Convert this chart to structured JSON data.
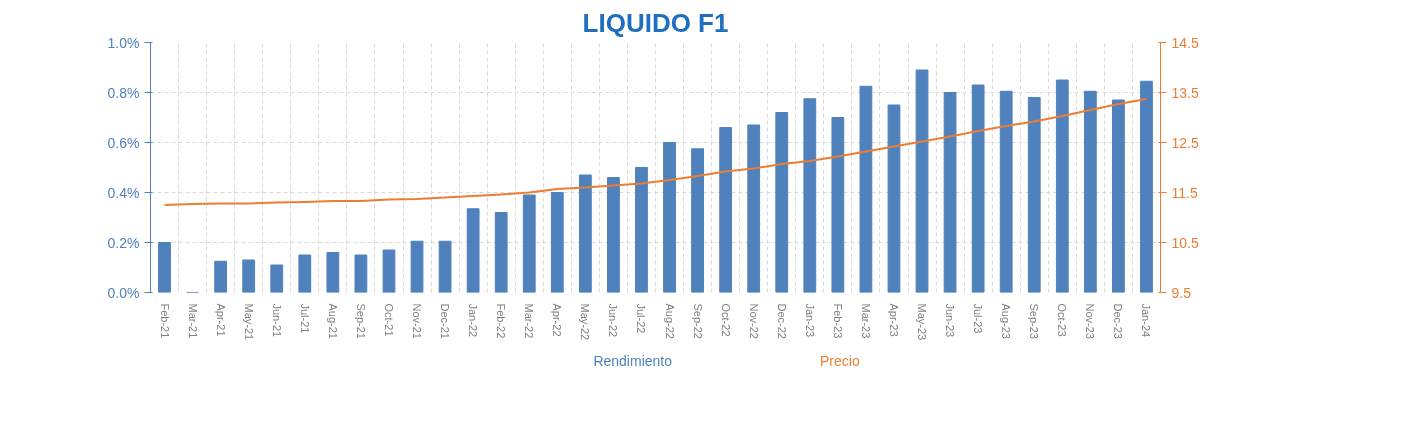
{
  "chart_data": {
    "type": "bar",
    "title": "LIQUIDO F1",
    "categories": [
      "Feb-21",
      "Mar-21",
      "Apr-21",
      "May-21",
      "Jun-21",
      "Jul-21",
      "Aug-21",
      "Sep-21",
      "Oct-21",
      "Nov-21",
      "Dec-21",
      "Jan-22",
      "Feb-22",
      "Mar-22",
      "Apr-22",
      "May-22",
      "Jun-22",
      "Jul-22",
      "Aug-22",
      "Sep-22",
      "Oct-22",
      "Nov-22",
      "Dec-22",
      "Jan-23",
      "Feb-23",
      "Mar-23",
      "Apr-23",
      "May-23",
      "Jun-23",
      "Jul-23",
      "Aug-23",
      "Sep-23",
      "Oct-23",
      "Nov-23",
      "Dec-23",
      "Jan-24"
    ],
    "series": [
      {
        "name": "Rendimiento",
        "color": "#4f81bd",
        "values": [
          0.2,
          0.0,
          0.125,
          0.13,
          0.11,
          0.15,
          0.16,
          0.15,
          0.17,
          0.205,
          0.205,
          0.335,
          0.32,
          0.39,
          0.4,
          0.47,
          0.46,
          0.5,
          0.6,
          0.575,
          0.66,
          0.67,
          0.72,
          0.775,
          0.7,
          0.825,
          0.75,
          0.89,
          0.8,
          0.83,
          0.805,
          0.78,
          0.85,
          0.805,
          0.77,
          0.845
        ]
      },
      {
        "name": "Precio",
        "type": "line",
        "axis": "y2",
        "color": "#ed7d31",
        "values": [
          11.25,
          11.27,
          11.28,
          11.28,
          11.3,
          11.31,
          11.33,
          11.33,
          11.36,
          11.37,
          11.4,
          11.43,
          11.46,
          11.5,
          11.57,
          11.6,
          11.64,
          11.68,
          11.75,
          11.83,
          11.92,
          11.98,
          12.07,
          12.13,
          12.22,
          12.32,
          12.42,
          12.52,
          12.62,
          12.73,
          12.83,
          12.92,
          13.03,
          13.15,
          13.27,
          13.37
        ]
      }
    ],
    "ylim": [
      0,
      1.0
    ],
    "yticks": [
      {
        "value": 0,
        "label": "0.0%"
      },
      {
        "value": 0.2,
        "label": "0.2%"
      },
      {
        "value": 0.4,
        "label": "0.4%"
      },
      {
        "value": 0.6,
        "label": "0.6%"
      },
      {
        "value": 0.8,
        "label": "0.8%"
      },
      {
        "value": 1.0,
        "label": "1.0%"
      }
    ],
    "y2lim": [
      9.5,
      14.5
    ],
    "y2ticks": [
      9.5,
      10.5,
      11.5,
      12.5,
      13.5,
      14.5
    ],
    "grid": true,
    "legend": "bottom",
    "line_style": "solid",
    "marker": "none"
  }
}
